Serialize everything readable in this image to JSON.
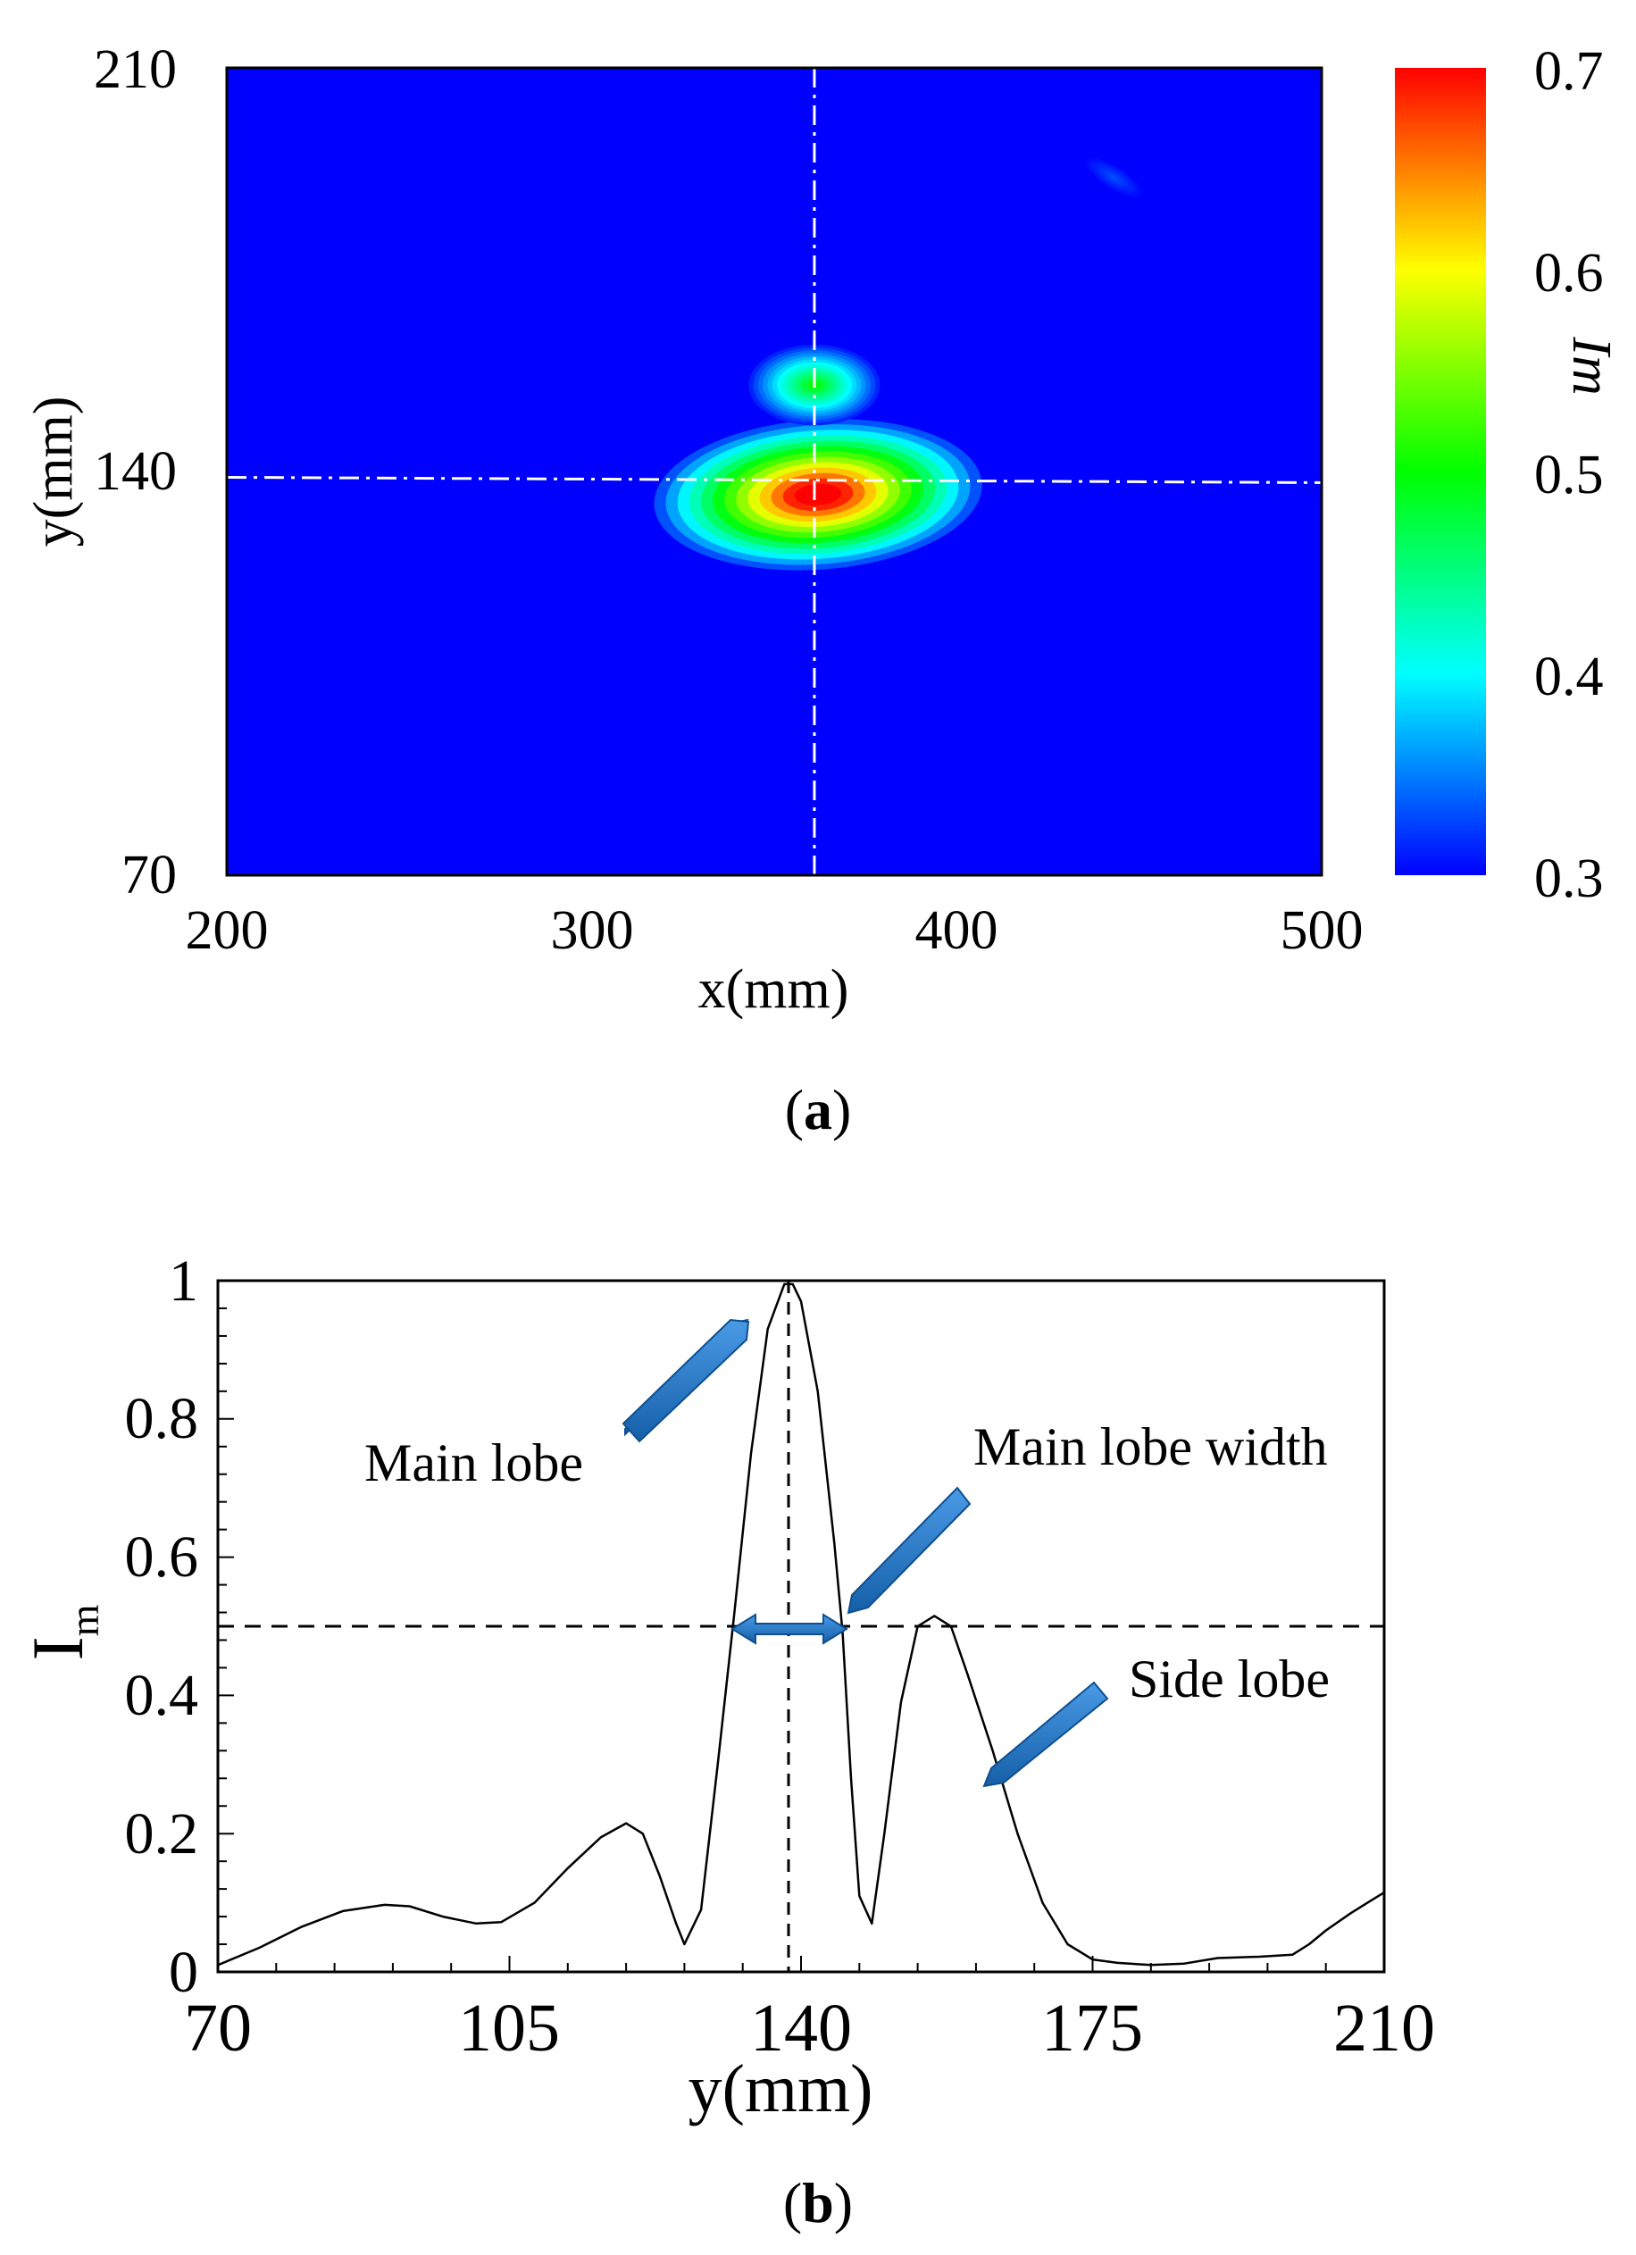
{
  "chart_data": [
    {
      "type": "heatmap",
      "panel_label": "a",
      "xlabel": "x(mm)",
      "ylabel": "y(mm)",
      "xlim": [
        200,
        500
      ],
      "ylim": [
        70,
        210
      ],
      "x_ticks": [
        "200",
        "300",
        "400",
        "500"
      ],
      "y_ticks": [
        "70",
        "140",
        "210"
      ],
      "colorbar": {
        "label": "Im",
        "range": [
          0.3,
          0.7
        ],
        "ticks": [
          "0.3",
          "0.4",
          "0.5",
          "0.6",
          "0.7"
        ],
        "colors": [
          "#0000ff",
          "#00ffff",
          "#00ff00",
          "#ffff00",
          "#ff0000"
        ]
      },
      "crosshair": {
        "x": 361,
        "y": 139
      },
      "hotspots": [
        {
          "x": 362,
          "y": 136,
          "rx": 45,
          "ry": 13,
          "peak": 0.75
        },
        {
          "x": 361,
          "y": 155,
          "rx": 18,
          "ry": 7,
          "peak": 0.5
        },
        {
          "x": 443,
          "y": 191,
          "rx": 9,
          "ry": 2,
          "peak": 0.33
        }
      ],
      "background_color": "#0000ff"
    },
    {
      "type": "line",
      "panel_label": "b",
      "xlabel": "y(mm)",
      "ylabel": "I",
      "ylabel_sub": "m",
      "xlim": [
        70,
        210
      ],
      "ylim": [
        0,
        1
      ],
      "x_ticks": [
        "70",
        "105",
        "140",
        "175",
        "210"
      ],
      "y_ticks": [
        "0",
        "0.2",
        "0.4",
        "0.6",
        "0.8",
        "1"
      ],
      "threshold": 0.5,
      "peak_x": 138.5,
      "series": [
        {
          "name": "Im",
          "x": [
            70,
            75,
            80,
            85,
            90,
            93,
            97,
            101,
            104,
            108,
            112,
            116,
            119,
            121,
            123,
            125,
            126,
            128,
            130,
            132,
            134,
            136,
            138,
            139,
            140,
            142,
            144,
            145,
            146,
            147,
            148.5,
            150,
            152,
            154,
            156,
            158,
            160,
            163,
            166,
            169,
            172,
            175,
            178,
            182,
            186,
            190,
            195,
            199,
            201,
            203,
            206,
            208,
            210
          ],
          "y": [
            0.01,
            0.035,
            0.065,
            0.088,
            0.097,
            0.095,
            0.08,
            0.07,
            0.072,
            0.1,
            0.15,
            0.195,
            0.215,
            0.2,
            0.14,
            0.07,
            0.04,
            0.09,
            0.3,
            0.52,
            0.75,
            0.93,
            0.995,
            0.995,
            0.97,
            0.84,
            0.62,
            0.49,
            0.28,
            0.11,
            0.07,
            0.2,
            0.39,
            0.5,
            0.515,
            0.5,
            0.43,
            0.32,
            0.2,
            0.1,
            0.04,
            0.018,
            0.013,
            0.01,
            0.012,
            0.02,
            0.022,
            0.025,
            0.04,
            0.06,
            0.085,
            0.1,
            0.115
          ]
        }
      ],
      "annotations": [
        {
          "text": "Main lobe"
        },
        {
          "text": "Main lobe width"
        },
        {
          "text": "Side lobe"
        }
      ],
      "arrow_color": "#1f77c9"
    }
  ]
}
